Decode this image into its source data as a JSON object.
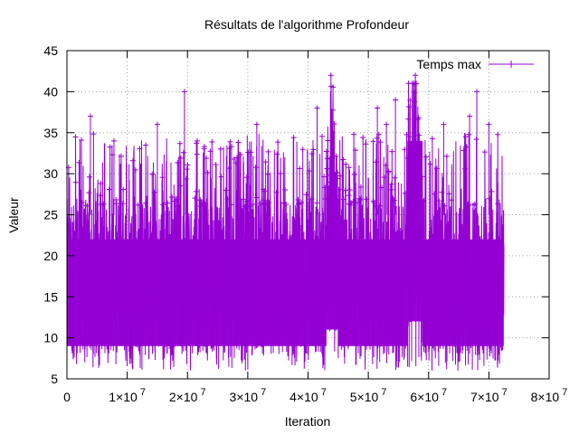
{
  "chart_data": {
    "type": "line",
    "title": "Résultats de l'algorithme Profondeur",
    "xlabel": "Iteration",
    "ylabel": "Valeur",
    "xlim": [
      0,
      80000000
    ],
    "ylim": [
      5,
      45
    ],
    "grid": true,
    "legend_position": "top-right",
    "x_tick_labels": [
      "0",
      "1×10",
      "2×10",
      "3×10",
      "4×10",
      "5×10",
      "6×10",
      "7×10",
      "8×10"
    ],
    "x_tick_exponent": "7",
    "y_tick_labels": [
      "5",
      "10",
      "15",
      "20",
      "25",
      "30",
      "35",
      "40",
      "45"
    ],
    "series": [
      {
        "name": "Temps max",
        "color": "#9400d3",
        "x_range": [
          0,
          72500000
        ],
        "typical_min": 8,
        "typical_max": 27,
        "overall_min": 6,
        "overall_max": 42,
        "peaks": [
          {
            "x": 3900000,
            "y": 37
          },
          {
            "x": 7800000,
            "y": 34
          },
          {
            "x": 15000000,
            "y": 36
          },
          {
            "x": 19500000,
            "y": 40
          },
          {
            "x": 31500000,
            "y": 36
          },
          {
            "x": 41500000,
            "y": 38
          },
          {
            "x": 43800000,
            "y": 42
          },
          {
            "x": 51500000,
            "y": 38
          },
          {
            "x": 53000000,
            "y": 36
          },
          {
            "x": 54500000,
            "y": 39
          },
          {
            "x": 57800000,
            "y": 42
          },
          {
            "x": 62500000,
            "y": 36
          },
          {
            "x": 66800000,
            "y": 37
          },
          {
            "x": 68000000,
            "y": 40
          },
          {
            "x": 70000000,
            "y": 36
          }
        ],
        "dense_bands": [
          {
            "x": [
              43000000,
              45000000
            ],
            "min": 10,
            "max": 33
          },
          {
            "x": [
              56500000,
              59000000
            ],
            "min": 11,
            "max": 40
          }
        ]
      }
    ]
  }
}
